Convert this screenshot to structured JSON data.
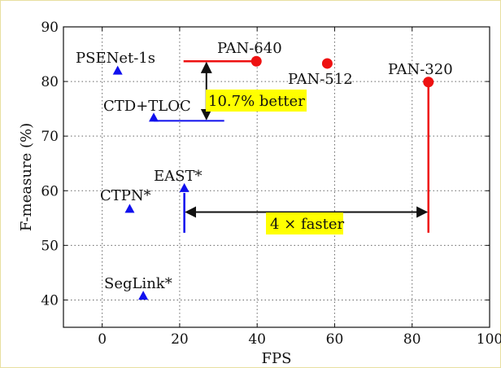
{
  "chart_data": {
    "type": "scatter",
    "title": "",
    "xlabel": "FPS",
    "ylabel": "F-measure (%)",
    "xlim": [
      -10,
      100
    ],
    "ylim": [
      35,
      90
    ],
    "xticks": [
      0,
      20,
      40,
      60,
      80,
      100
    ],
    "yticks": [
      40,
      50,
      60,
      70,
      80,
      90
    ],
    "grid": true,
    "colors": {
      "baseline": "#1010ee",
      "pan": "#ee1111",
      "highlight": "#ffff00"
    },
    "baselines": [
      {
        "label": "PSENet-1s",
        "x": 4.0,
        "y": 82.0
      },
      {
        "label": "CTD+TLOC",
        "x": 13.3,
        "y": 73.4
      },
      {
        "label": "EAST*",
        "x": 21.2,
        "y": 60.5
      },
      {
        "label": "CTPN*",
        "x": 7.1,
        "y": 56.7
      },
      {
        "label": "SegLink*",
        "x": 10.6,
        "y": 40.8
      }
    ],
    "pan": [
      {
        "label": "PAN-640",
        "x": 39.8,
        "y": 83.7
      },
      {
        "label": "PAN-512",
        "x": 58.1,
        "y": 83.3
      },
      {
        "label": "PAN-320",
        "x": 84.2,
        "y": 79.9
      }
    ],
    "annotations": [
      {
        "text": "10.7% better"
      },
      {
        "text": "4 × faster"
      }
    ]
  }
}
